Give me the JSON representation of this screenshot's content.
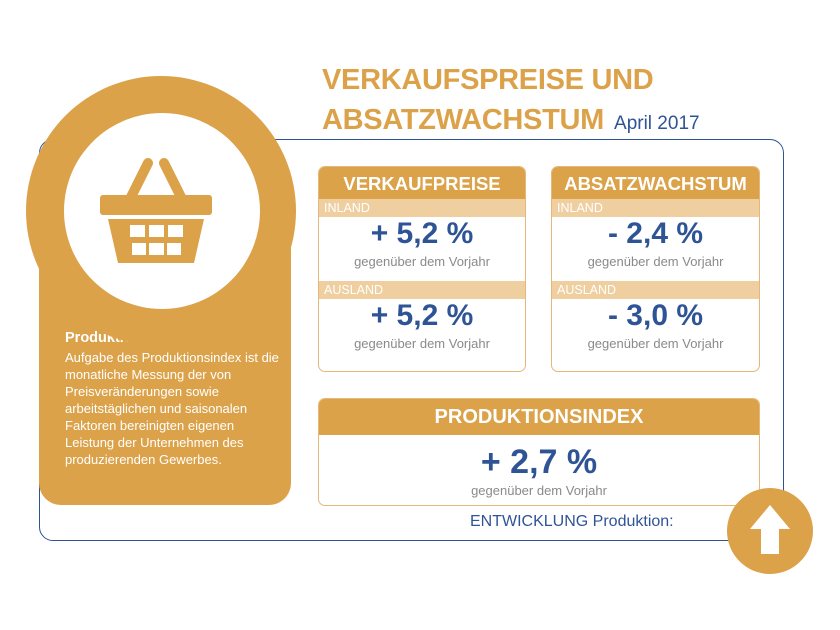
{
  "header": {
    "title_line1": "VERKAUFSPREISE UND",
    "title_line2": "ABSATZWACHSTUM",
    "date": "April 2017"
  },
  "left_panel": {
    "icon": "shopping-basket-icon",
    "heading": "Produktionsindex:",
    "description": "Aufgabe des Produktionsindex ist die monatliche Messung der von Preisveränderungen sowie arbeitstäglichen und saisonalen Faktoren bereinigten eigenen Leistung der Unternehmen des produzierenden Gewerbes."
  },
  "verkaufspreise": {
    "title": "VERKAUFPREISE",
    "inland_label": "INLAND",
    "inland_value": "+ 5,2 %",
    "inland_note": "gegenüber dem Vorjahr",
    "ausland_label": "AUSLAND",
    "ausland_value": "+ 5,2 %",
    "ausland_note": "gegenüber dem Vorjahr"
  },
  "absatzwachstum": {
    "title": "ABSATZWACHSTUM",
    "inland_label": "INLAND",
    "inland_value": "- 2,4 %",
    "inland_note": "gegenüber dem Vorjahr",
    "ausland_label": "AUSLAND",
    "ausland_value": "- 3,0 %",
    "ausland_note": "gegenüber dem Vorjahr"
  },
  "produktionsindex": {
    "title": "PRODUKTIONSINDEX",
    "value": "+ 2,7 %",
    "note": "gegenüber dem Vorjahr"
  },
  "footer": {
    "entwicklung_label": "ENTWICKLUNG Produktion:",
    "trend_icon": "arrow-up-icon"
  },
  "colors": {
    "accent_gold": "#dba24a",
    "light_gold": "#efcfa0",
    "navy": "#2f5496",
    "gray": "#8a8a8a"
  }
}
